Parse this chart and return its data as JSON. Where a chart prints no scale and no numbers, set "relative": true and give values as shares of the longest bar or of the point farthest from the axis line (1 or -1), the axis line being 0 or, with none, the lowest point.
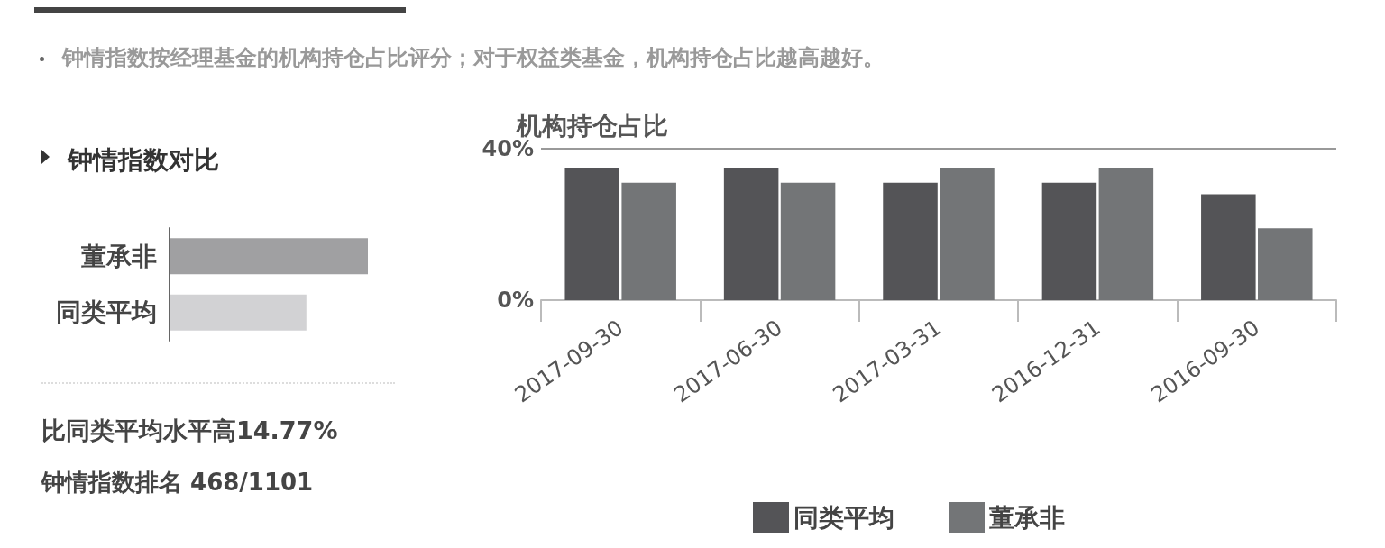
{
  "chart_data": [
    {
      "type": "bar",
      "title": "钟情指数对比",
      "orientation": "horizontal",
      "relative": true,
      "categories": [
        "董承非",
        "同类平均"
      ],
      "values": [
        1,
        0.69
      ],
      "colors": [
        "#a0a0a2",
        "#d2d2d4"
      ],
      "legend": false,
      "annotations": [
        "钟情指数按经理基金的机构持仓占比评分；对于权益类基金，机构持仓占比越高越好。",
        "比同类平均水平高14.77%",
        "钟情指数排名 468/1101"
      ]
    },
    {
      "type": "bar",
      "title": "机构持仓占比",
      "categories": [
        "2017-09-30",
        "2017-06-30",
        "2017-03-31",
        "2016-12-31",
        "2016-09-30"
      ],
      "series": [
        {
          "name": "同类平均",
          "color": "#545457",
          "values": [
            35,
            35,
            31,
            31,
            28
          ]
        },
        {
          "name": "董承非",
          "color": "#737577",
          "values": [
            31,
            31,
            35,
            35,
            19
          ]
        }
      ],
      "ylim": [
        0,
        40
      ],
      "yticks": [
        {
          "value": 0,
          "label": "0%"
        },
        {
          "value": 40,
          "label": "40%"
        }
      ],
      "ref_lines": [
        {
          "axis": "y",
          "value": 40,
          "color": "#999999"
        }
      ],
      "legend": "bottom"
    }
  ]
}
